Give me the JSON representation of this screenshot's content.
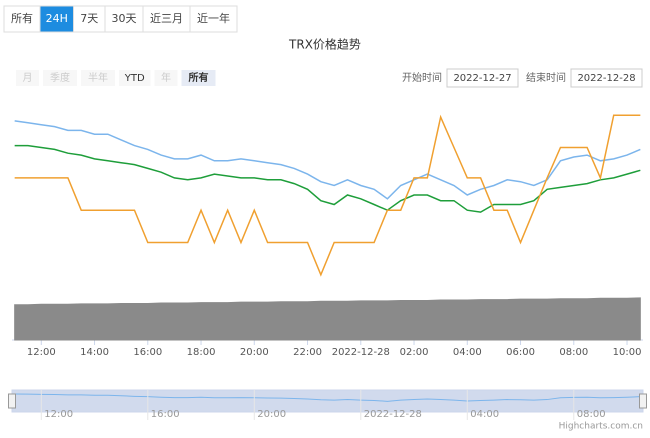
{
  "range_tabs": [
    "所有",
    "24H",
    "7天",
    "30天",
    "近三月",
    "近一年"
  ],
  "range_selected": 1,
  "zoom_buttons": [
    "月",
    "季度",
    "半年",
    "YTD",
    "年",
    "所有"
  ],
  "zoom_selected": 5,
  "date_inputs": [
    {
      "label": "开始时间",
      "value": "2022-12-27"
    },
    {
      "label": "结束时间",
      "value": "2022-12-28"
    }
  ],
  "credit": "Highcharts.com.cn",
  "chart_data": {
    "type": "line",
    "title": "TRX价格趋势",
    "x": [
      11,
      11.5,
      12,
      12.5,
      13,
      13.5,
      14,
      14.5,
      15,
      15.5,
      16,
      16.5,
      17,
      17.5,
      18,
      18.5,
      19,
      19.5,
      20,
      20.5,
      21,
      21.5,
      22,
      22.5,
      23,
      23.5,
      24,
      24.5,
      25,
      25.5,
      26,
      26.5,
      27,
      27.5,
      28,
      28.5,
      29,
      29.5,
      30,
      30.5,
      31,
      31.5,
      32,
      32.5,
      33,
      33.5,
      34,
      34.5
    ],
    "xlim": [
      10.9,
      34.6
    ],
    "xticks": [
      {
        "value": 12,
        "label": "12:00"
      },
      {
        "value": 14,
        "label": "14:00"
      },
      {
        "value": 16,
        "label": "16:00"
      },
      {
        "value": 18,
        "label": "18:00"
      },
      {
        "value": 20,
        "label": "20:00"
      },
      {
        "value": 22,
        "label": "22:00"
      },
      {
        "value": 24,
        "label": "2022-12-28"
      },
      {
        "value": 26,
        "label": "02:00"
      },
      {
        "value": 28,
        "label": "04:00"
      },
      {
        "value": 30,
        "label": "06:00"
      },
      {
        "value": 32,
        "label": "08:00"
      },
      {
        "value": 34,
        "label": "10:00"
      }
    ],
    "navigator_xticks": [
      {
        "value": 12,
        "label": "12:00"
      },
      {
        "value": 16,
        "label": "16:00"
      },
      {
        "value": 20,
        "label": "20:00"
      },
      {
        "value": 24,
        "label": "2022-12-28"
      },
      {
        "value": 28,
        "label": "04:00"
      },
      {
        "value": 32,
        "label": "08:00"
      }
    ],
    "ylim": [
      0,
      100
    ],
    "y2lim": [
      0,
      100
    ],
    "series": [
      {
        "color": "#7cb5ec",
        "values": [
          89,
          88,
          87,
          86,
          84,
          84,
          82,
          82,
          79,
          76,
          74,
          71,
          69,
          69,
          71,
          68,
          68,
          69,
          68,
          67,
          66,
          64,
          61,
          57,
          55,
          58,
          55,
          53,
          48,
          55,
          58,
          61,
          58,
          55,
          50,
          53,
          55,
          58,
          57,
          55,
          58,
          68,
          70,
          71,
          68,
          69,
          71,
          74
        ]
      },
      {
        "color": "#1e9e3a",
        "values": [
          76,
          76,
          75,
          74,
          72,
          71,
          69,
          68,
          67,
          66,
          64,
          62,
          59,
          58,
          59,
          61,
          60,
          59,
          59,
          58,
          58,
          56,
          53,
          47,
          45,
          50,
          48,
          45,
          42,
          47,
          50,
          50,
          47,
          47,
          42,
          41,
          45,
          45,
          45,
          47,
          53,
          54,
          55,
          56,
          58,
          59,
          61,
          63
        ]
      },
      {
        "color": "#f0a030",
        "values": [
          59,
          59,
          59,
          59,
          59,
          42,
          42,
          42,
          42,
          42,
          25,
          25,
          25,
          25,
          42,
          25,
          42,
          25,
          42,
          25,
          25,
          25,
          25,
          8,
          25,
          25,
          25,
          25,
          42,
          42,
          59,
          59,
          91,
          75,
          59,
          59,
          42,
          42,
          25,
          42,
          59,
          75,
          75,
          75,
          59,
          92,
          92,
          92
        ]
      },
      {
        "color": "#8a8a8a",
        "axis": "y2",
        "values": [
          82,
          82,
          83,
          83,
          83,
          84,
          84,
          84,
          85,
          85,
          85,
          86,
          86,
          86,
          87,
          87,
          87,
          88,
          88,
          88,
          89,
          89,
          89,
          90,
          90,
          90,
          91,
          91,
          91,
          92,
          92,
          92,
          93,
          93,
          93,
          94,
          94,
          94,
          95,
          95,
          95,
          96,
          96,
          96,
          97,
          97,
          97,
          98
        ]
      }
    ]
  }
}
